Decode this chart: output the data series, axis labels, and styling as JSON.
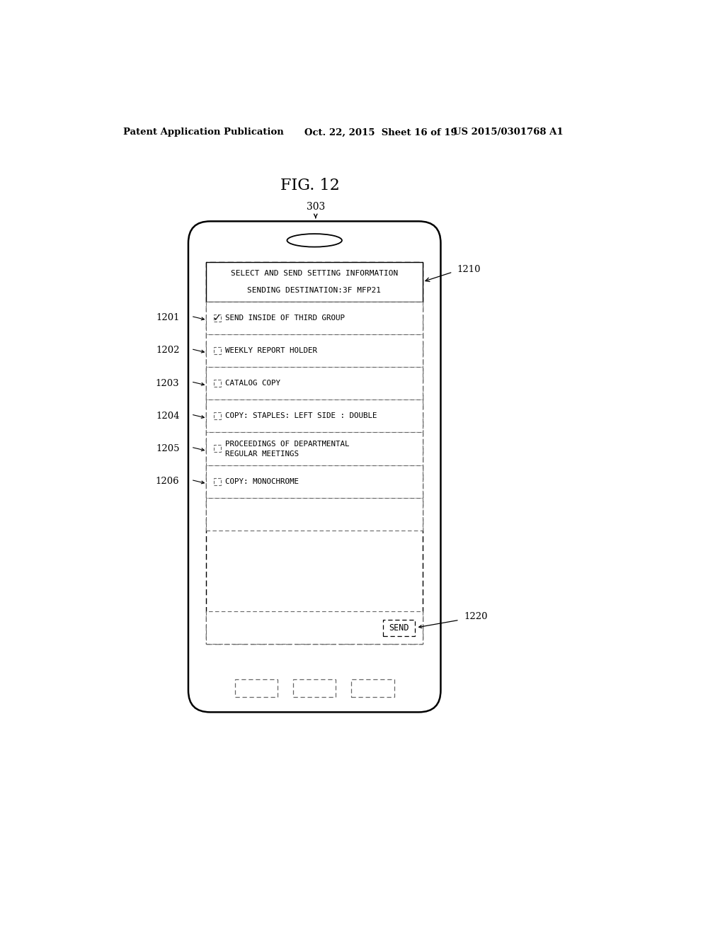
{
  "header_left": "Patent Application Publication",
  "header_mid": "Oct. 22, 2015  Sheet 16 of 19",
  "header_right": "US 2015/0301768 A1",
  "figure_title": "FIG. 12",
  "device_label": "303",
  "screen_title_line1": "SELECT AND SEND SETTING INFORMATION",
  "screen_title_line2": "SENDING DESTINATION:3F MFP21",
  "label_1210": "1210",
  "label_1220": "1220",
  "list_items": [
    {
      "label": "1201",
      "text": "SEND INSIDE OF THIRD GROUP",
      "checked": true
    },
    {
      "label": "1202",
      "text": "WEEKLY REPORT HOLDER",
      "checked": false
    },
    {
      "label": "1203",
      "text": "CATALOG COPY",
      "checked": false
    },
    {
      "label": "1204",
      "text": "COPY: STAPLES: LEFT SIDE : DOUBLE",
      "checked": false
    },
    {
      "label": "1205",
      "text1": "PROCEEDINGS OF DEPARTMENTAL",
      "text2": "REGULAR MEETINGS",
      "checked": false,
      "multiline": true
    },
    {
      "label": "1206",
      "text": "COPY: MONOCHROME",
      "checked": false
    }
  ],
  "send_button_label": "SEND",
  "bg_color": "#ffffff",
  "line_color": "#000000",
  "dashed_color": "#666666",
  "text_color": "#000000",
  "font_size_header": 9.5,
  "font_size_title": 16,
  "font_size_device_label": 10,
  "font_size_screen_title": 8.0,
  "font_size_item": 7.8,
  "font_size_label": 9.5
}
